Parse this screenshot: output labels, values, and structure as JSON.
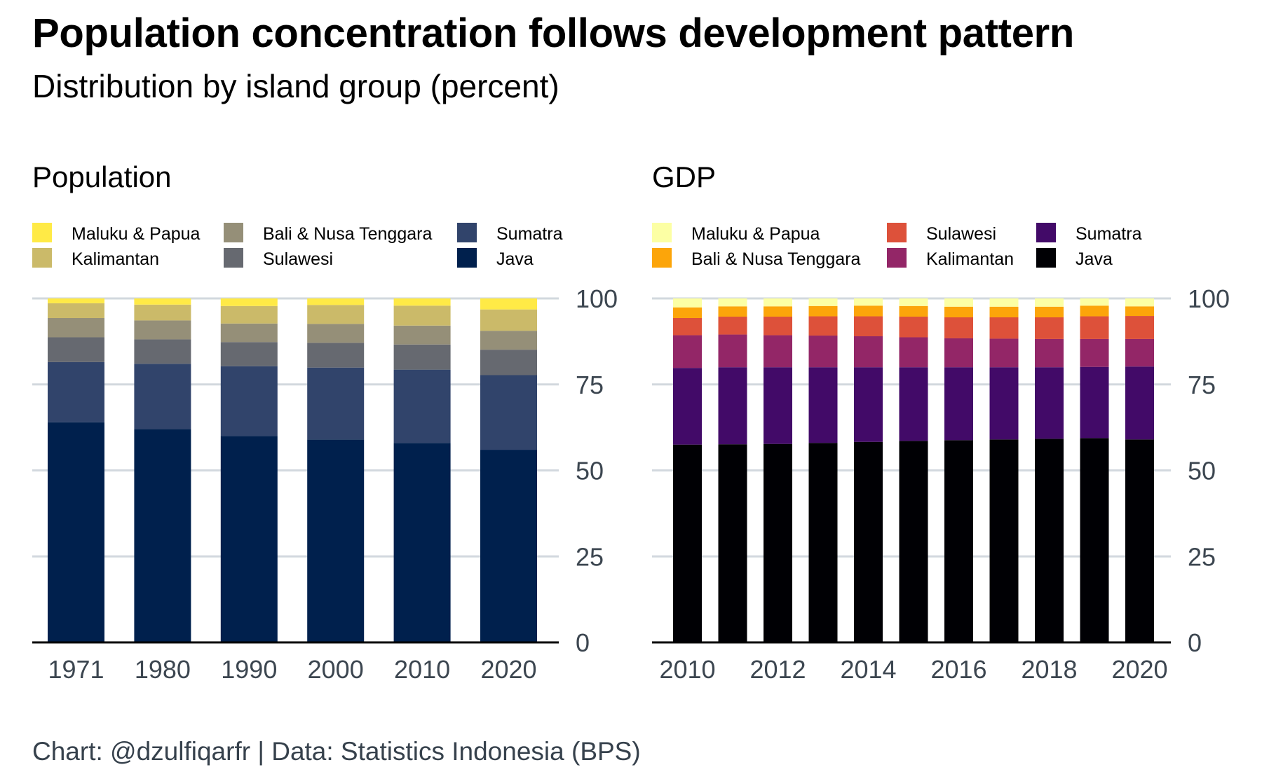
{
  "title": "Population concentration follows development pattern",
  "subtitle": "Distribution by island group (percent)",
  "caption": "Chart: @dzulfiqarfr | Data: Statistics Indonesia (BPS)",
  "chart_data": [
    {
      "type": "bar",
      "stacked": true,
      "title": "Population",
      "categories": [
        "1971",
        "1980",
        "1990",
        "2000",
        "2010",
        "2020"
      ],
      "ylim": [
        0,
        100
      ],
      "yticks": [
        0,
        25,
        50,
        75,
        100
      ],
      "y_axis_position": "right",
      "grid": true,
      "legend_position": "top",
      "legend_order": [
        "Maluku & Papua",
        "Kalimantan",
        "Bali & Nusa Tenggara",
        "Sulawesi",
        "Sumatra",
        "Java"
      ],
      "series": [
        {
          "name": "Java",
          "color": "#00204d",
          "values": [
            64,
            62,
            60,
            59,
            58,
            56
          ]
        },
        {
          "name": "Sumatra",
          "color": "#31446b",
          "values": [
            17.5,
            19,
            20.3,
            20.9,
            21.3,
            21.7
          ]
        },
        {
          "name": "Sulawesi",
          "color": "#666970",
          "values": [
            7.2,
            7.1,
            7,
            7.2,
            7.3,
            7.4
          ]
        },
        {
          "name": "Bali & Nusa Tenggara",
          "color": "#958f78",
          "values": [
            5.6,
            5.5,
            5.4,
            5.5,
            5.5,
            5.5
          ]
        },
        {
          "name": "Kalimantan",
          "color": "#cbba69",
          "values": [
            4.3,
            4.6,
            5.1,
            5.5,
            5.8,
            6.2
          ]
        },
        {
          "name": "Maluku & Papua",
          "color": "#ffea46",
          "values": [
            1.4,
            1.8,
            2.2,
            1.9,
            2.1,
            3.2
          ]
        }
      ]
    },
    {
      "type": "bar",
      "stacked": true,
      "title": "GDP",
      "categories": [
        "2010",
        "2011",
        "2012",
        "2013",
        "2014",
        "2015",
        "2016",
        "2017",
        "2018",
        "2019",
        "2020"
      ],
      "tick_labels": [
        "2010",
        "2012",
        "2014",
        "2016",
        "2018",
        "2020"
      ],
      "ylim": [
        0,
        100
      ],
      "yticks": [
        0,
        25,
        50,
        75,
        100
      ],
      "y_axis_position": "right",
      "grid": true,
      "legend_position": "top",
      "legend_order": [
        "Maluku & Papua",
        "Bali & Nusa Tenggara",
        "Sulawesi",
        "Kalimantan",
        "Sumatra",
        "Java"
      ],
      "series": [
        {
          "name": "Java",
          "color": "#000004",
          "values": [
            57.5,
            57.6,
            57.7,
            58,
            58.3,
            58.6,
            58.8,
            59,
            59.2,
            59.4,
            59
          ]
        },
        {
          "name": "Sumatra",
          "color": "#420a68",
          "values": [
            22.3,
            22.4,
            22.3,
            22,
            21.7,
            21.4,
            21.2,
            21,
            20.8,
            20.7,
            21.2
          ]
        },
        {
          "name": "Kalimantan",
          "color": "#932667",
          "values": [
            9.5,
            9.5,
            9.3,
            9.2,
            9,
            8.7,
            8.4,
            8.3,
            8.2,
            8.1,
            8
          ]
        },
        {
          "name": "Sulawesi",
          "color": "#dd513a",
          "values": [
            5,
            5.2,
            5.4,
            5.6,
            5.8,
            6,
            6.1,
            6.2,
            6.3,
            6.6,
            6.7
          ]
        },
        {
          "name": "Bali & Nusa Tenggara",
          "color": "#fca50a",
          "values": [
            3.1,
            3,
            3,
            3,
            3.1,
            3.1,
            3.1,
            3.1,
            3.1,
            3.1,
            2.8
          ]
        },
        {
          "name": "Maluku & Papua",
          "color": "#fcffa4",
          "values": [
            2.6,
            2.3,
            2.3,
            2.2,
            2.1,
            2.2,
            2.4,
            2.4,
            2.4,
            2.1,
            2.3
          ]
        }
      ]
    }
  ]
}
